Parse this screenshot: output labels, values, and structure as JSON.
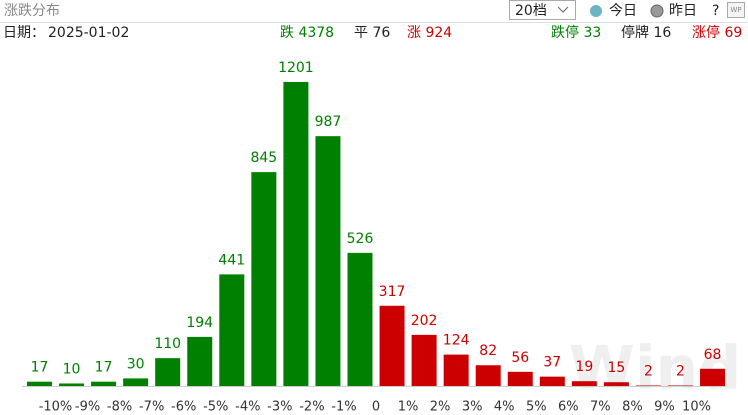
{
  "header": {
    "title": "涨跌分布",
    "levels": "20档",
    "today": "今日",
    "yesterday": "昨日",
    "help": "?",
    "icon": "WP"
  },
  "summary": {
    "date_label": "日期：",
    "date": "2025-01-02",
    "down": "跌 4378",
    "flat": "平 76",
    "up": "涨 924",
    "limit_down": "跌停 33",
    "suspended": "停牌 16",
    "limit_up": "涨停 69"
  },
  "watermark": "Wind",
  "chart_data": {
    "type": "bar",
    "bin_labels": [
      "-10%",
      "-9%",
      "-8%",
      "-7%",
      "-6%",
      "-5%",
      "-4%",
      "-3%",
      "-2%",
      "-1%",
      "0",
      "1%",
      "2%",
      "3%",
      "4%",
      "5%",
      "6%",
      "7%",
      "8%",
      "9%",
      "10%"
    ],
    "values": [
      17,
      10,
      17,
      30,
      110,
      194,
      441,
      845,
      1201,
      987,
      526,
      317,
      202,
      124,
      82,
      56,
      37,
      19,
      15,
      2,
      2,
      68
    ],
    "colors": [
      "#008000",
      "#008000",
      "#008000",
      "#008000",
      "#008000",
      "#008000",
      "#008000",
      "#008000",
      "#008000",
      "#008000",
      "#008000",
      "#cc0000",
      "#cc0000",
      "#cc0000",
      "#cc0000",
      "#cc0000",
      "#cc0000",
      "#cc0000",
      "#cc0000",
      "#cc0000",
      "#cc0000",
      "#cc0000"
    ]
  }
}
